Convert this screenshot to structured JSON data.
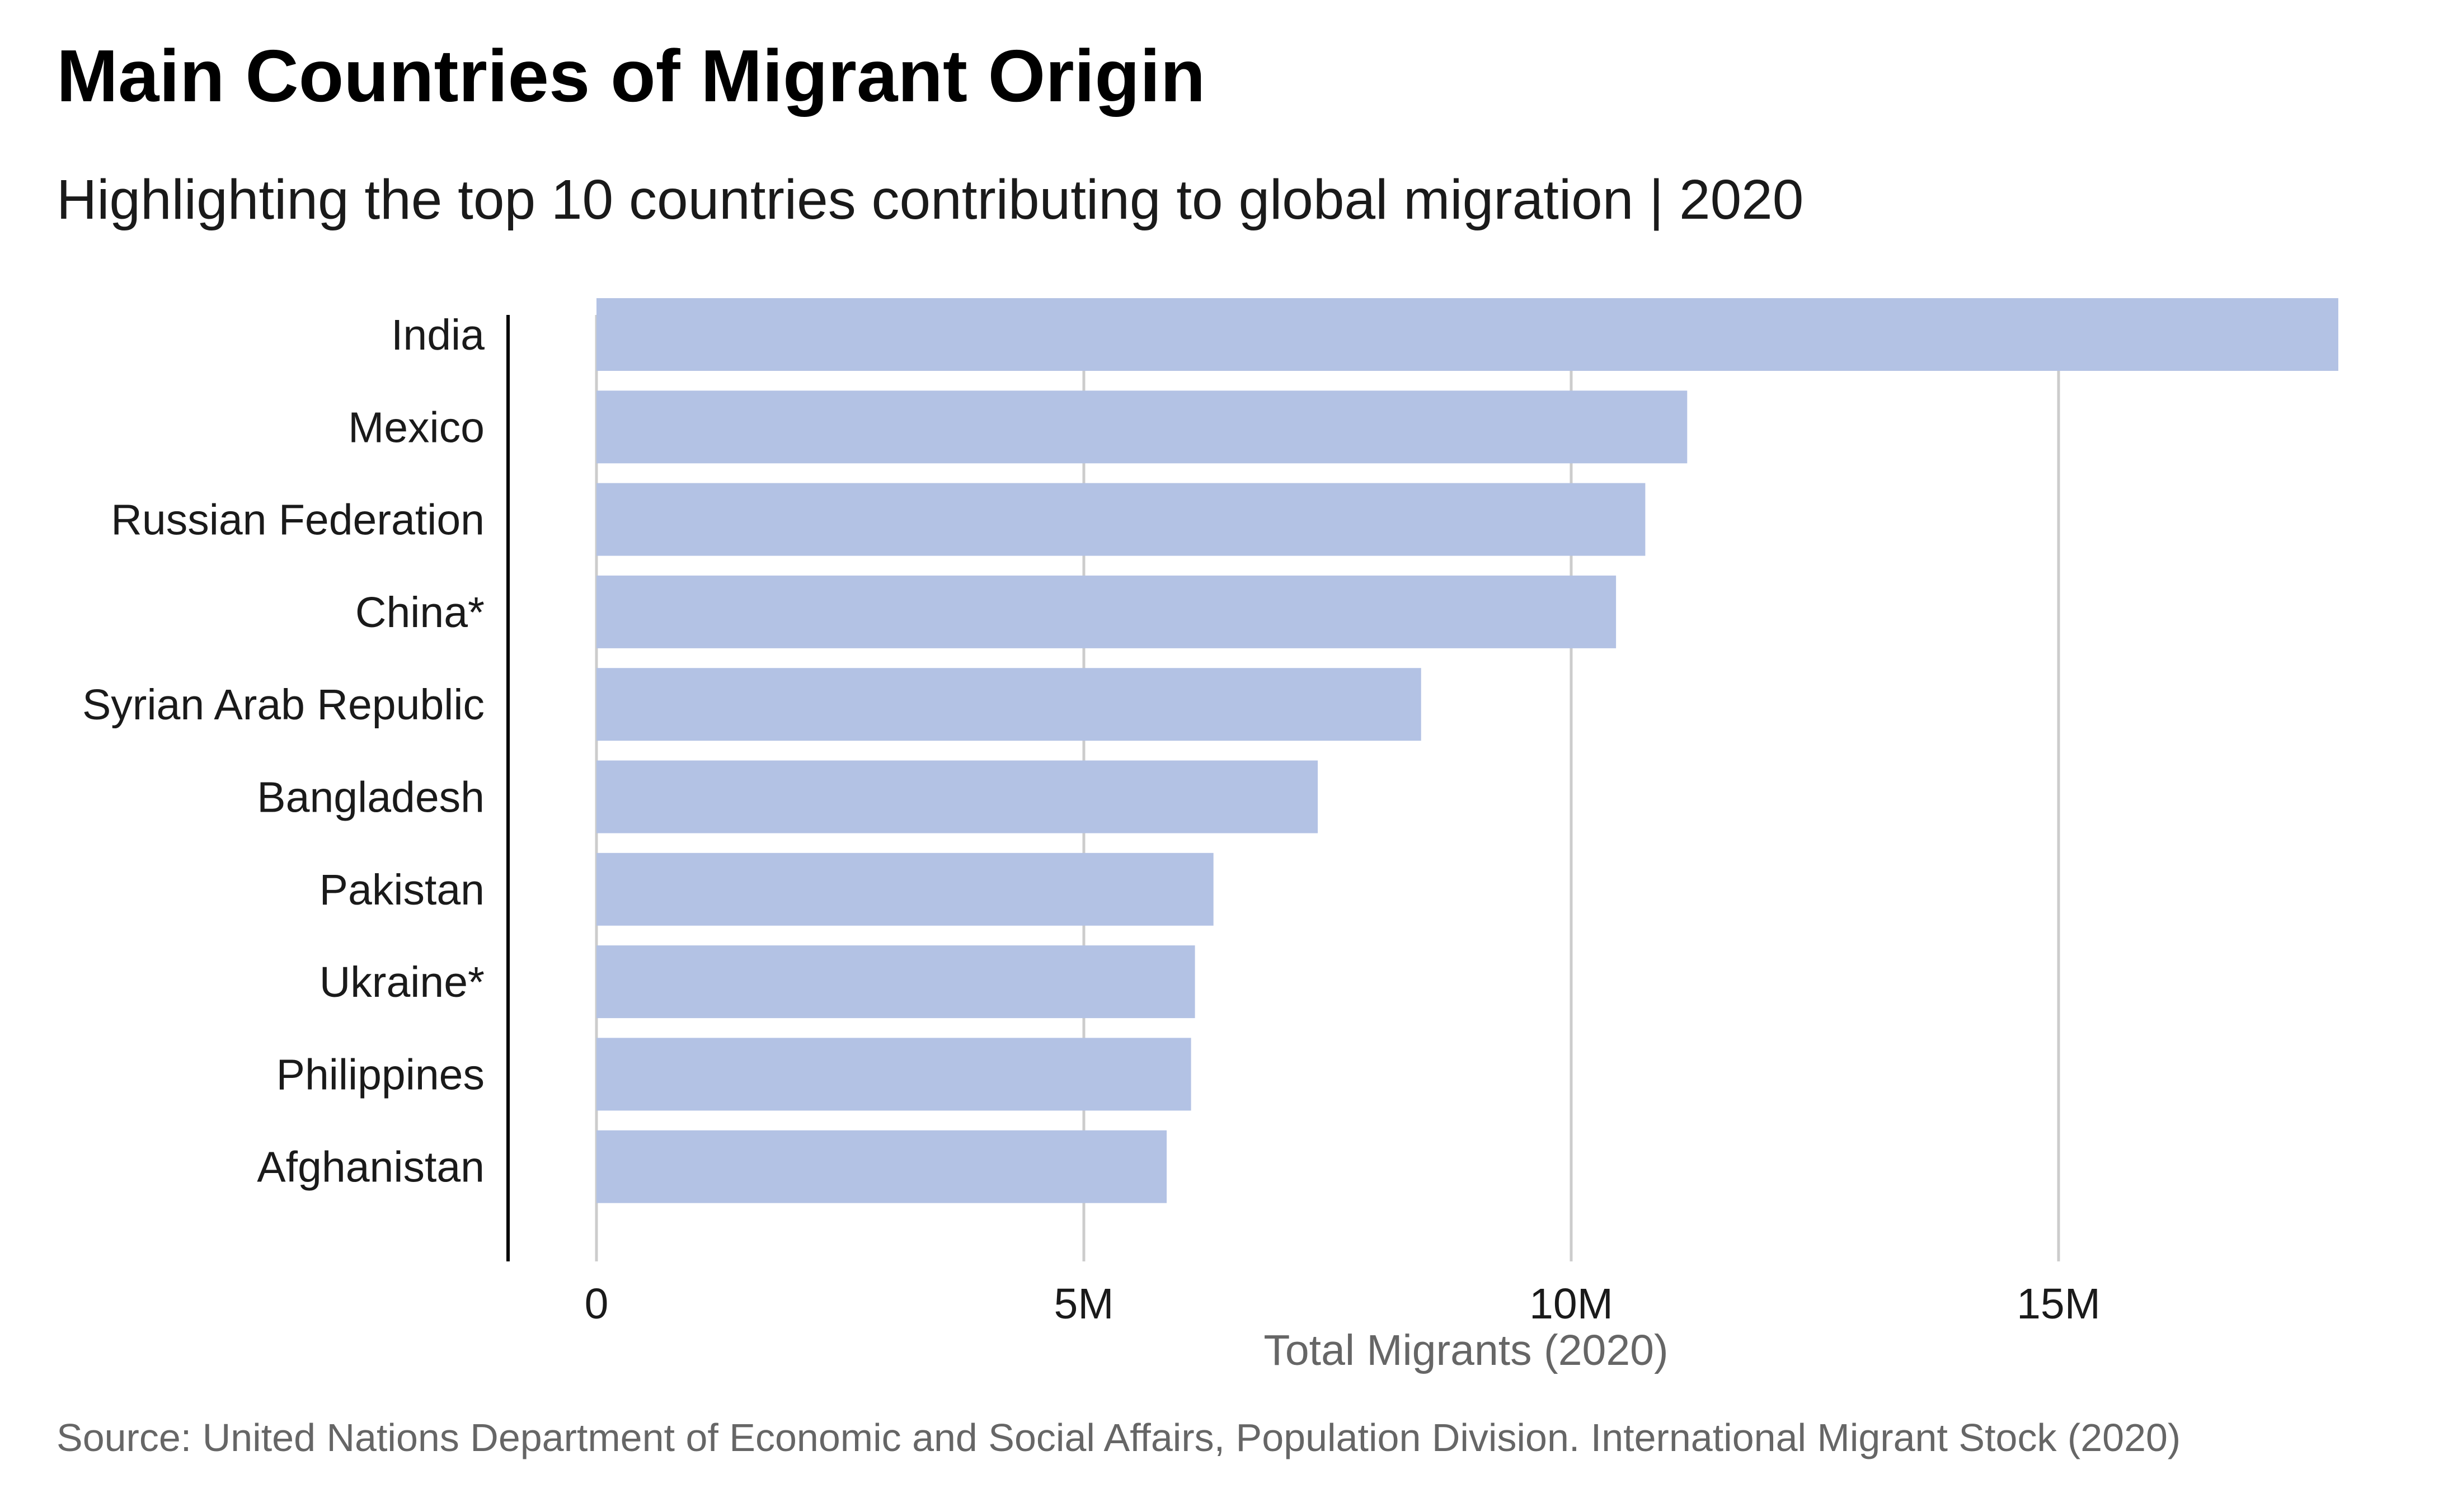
{
  "chart_data": {
    "type": "bar",
    "orientation": "horizontal",
    "title": "Main Countries of Migrant Origin",
    "subtitle": "Highlighting the top 10 countries contributing to global migration | 2020",
    "xlabel": "Total Migrants (2020)",
    "ylabel": "",
    "caption": "Source: United Nations Department of Economic and Social Affairs, Population Division. International Migrant Stock (2020)",
    "categories": [
      "India",
      "Mexico",
      "Russian Federation",
      "China*",
      "Syrian Arab Republic",
      "Bangladesh",
      "Pakistan",
      "Ukraine*",
      "Philippines",
      "Afghanistan"
    ],
    "values": [
      17870000,
      11190000,
      10760000,
      10460000,
      8460000,
      7400000,
      6330000,
      6140000,
      6100000,
      5850000
    ],
    "xlim": [
      0,
      18000000
    ],
    "xticks": [
      0,
      5000000,
      10000000,
      15000000
    ],
    "xtick_labels": [
      "0",
      "5M",
      "10M",
      "15M"
    ],
    "bar_color": "#b3c2e4",
    "grid": "vertical major",
    "legend": "none"
  }
}
